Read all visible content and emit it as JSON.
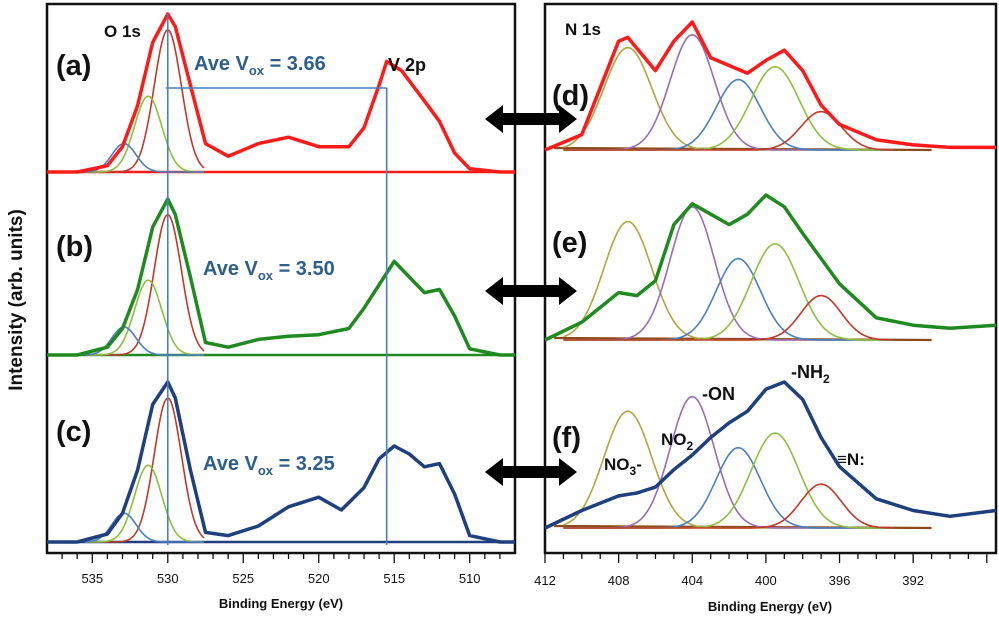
{
  "chart_data": [
    {
      "type": "line",
      "panel": "left",
      "xlabel": "Binding Energy (eV)",
      "ylabel": "Intensity (arb. units)",
      "xlim": [
        538,
        507
      ],
      "xticks": [
        535,
        530,
        525,
        520,
        515,
        510
      ],
      "region_labels": [
        "O 1s",
        "V 2p"
      ],
      "series": [
        {
          "name": "(a)",
          "label_ave": "Ave V",
          "label_sub": "ox",
          "label_value": " = 3.66",
          "color": "#ff1a1a",
          "x": [
            538,
            536,
            534,
            533,
            532,
            531,
            530,
            529.5,
            528.5,
            527.5,
            526,
            524,
            522,
            520,
            518,
            517,
            516,
            515.5,
            514.5,
            513,
            512,
            511,
            510,
            508,
            507
          ],
          "y": [
            0,
            0,
            0.04,
            0.16,
            0.42,
            0.82,
            1.0,
            0.92,
            0.55,
            0.18,
            0.1,
            0.18,
            0.22,
            0.16,
            0.16,
            0.28,
            0.55,
            0.7,
            0.64,
            0.45,
            0.32,
            0.12,
            0.02,
            0,
            0
          ]
        },
        {
          "name": "(b)",
          "label_ave": "Ave V",
          "label_sub": "ox",
          "label_value": " = 3.50",
          "color": "#1f8a1f",
          "x": [
            538,
            536,
            534,
            533,
            532,
            531,
            530,
            529.5,
            528.5,
            527.5,
            526,
            524,
            522,
            520,
            518,
            517,
            516,
            515,
            514,
            513,
            512,
            511,
            510,
            508,
            507
          ],
          "y": [
            0,
            0,
            0.05,
            0.17,
            0.42,
            0.82,
            1.0,
            0.9,
            0.5,
            0.08,
            0.05,
            0.1,
            0.12,
            0.13,
            0.17,
            0.3,
            0.45,
            0.6,
            0.5,
            0.4,
            0.42,
            0.25,
            0.04,
            0,
            0
          ]
        },
        {
          "name": "(c)",
          "label_ave": "Ave V",
          "label_sub": "ox",
          "label_value": " = 3.25",
          "color": "#1f3f7f",
          "x": [
            538,
            536,
            534,
            533,
            532,
            531,
            530,
            529.5,
            528.5,
            527.5,
            526,
            524,
            522,
            520,
            518.5,
            517,
            516,
            515,
            514,
            513,
            512,
            511,
            510,
            508,
            507
          ],
          "y": [
            0,
            0,
            0.05,
            0.18,
            0.45,
            0.86,
            1.0,
            0.9,
            0.45,
            0.06,
            0.04,
            0.1,
            0.22,
            0.28,
            0.2,
            0.34,
            0.52,
            0.6,
            0.55,
            0.47,
            0.49,
            0.3,
            0.04,
            0,
            0
          ]
        }
      ],
      "vlines_x": [
        530,
        515.5
      ]
    },
    {
      "type": "line",
      "panel": "right",
      "xlabel": "Binding Energy (eV)",
      "xlim": [
        412,
        387.5
      ],
      "xticks": [
        412,
        408,
        404,
        400,
        396,
        392
      ],
      "region_label": "N 1s",
      "series": [
        {
          "name": "(d)",
          "color": "#ff1a1a",
          "x": [
            412,
            410,
            408,
            407.5,
            406,
            405,
            404,
            403,
            402,
            401,
            400,
            399,
            398,
            397,
            396,
            394,
            392,
            390,
            387.5
          ],
          "y": [
            0,
            0.12,
            0.85,
            0.88,
            0.62,
            0.85,
            1.0,
            0.72,
            0.66,
            0.6,
            0.7,
            0.78,
            0.62,
            0.35,
            0.2,
            0.08,
            0.04,
            0.02,
            0.02
          ]
        },
        {
          "name": "(e)",
          "color": "#1f8a1f",
          "x": [
            412,
            410,
            408,
            407,
            406,
            405,
            404,
            403,
            402,
            401,
            400,
            399,
            398,
            397,
            396,
            394,
            392,
            390,
            387.5
          ],
          "y": [
            0,
            0.12,
            0.32,
            0.3,
            0.4,
            0.78,
            0.92,
            0.85,
            0.78,
            0.85,
            0.98,
            0.9,
            0.72,
            0.55,
            0.38,
            0.15,
            0.1,
            0.08,
            0.1
          ]
        },
        {
          "name": "(f)",
          "color": "#1f3f7f",
          "x": [
            412,
            410,
            408,
            407,
            406,
            405,
            404,
            403,
            402,
            401,
            400,
            399,
            398,
            397,
            396,
            394,
            392,
            390,
            387.5
          ],
          "y": [
            0,
            0.12,
            0.22,
            0.24,
            0.28,
            0.4,
            0.5,
            0.62,
            0.72,
            0.8,
            0.95,
            1.0,
            0.88,
            0.62,
            0.42,
            0.2,
            0.12,
            0.08,
            0.12
          ]
        }
      ],
      "annotations": [
        "NO",
        "3",
        "-",
        "NO",
        "2",
        "-ON",
        "-NH",
        "2",
        "≡N:"
      ]
    }
  ]
}
